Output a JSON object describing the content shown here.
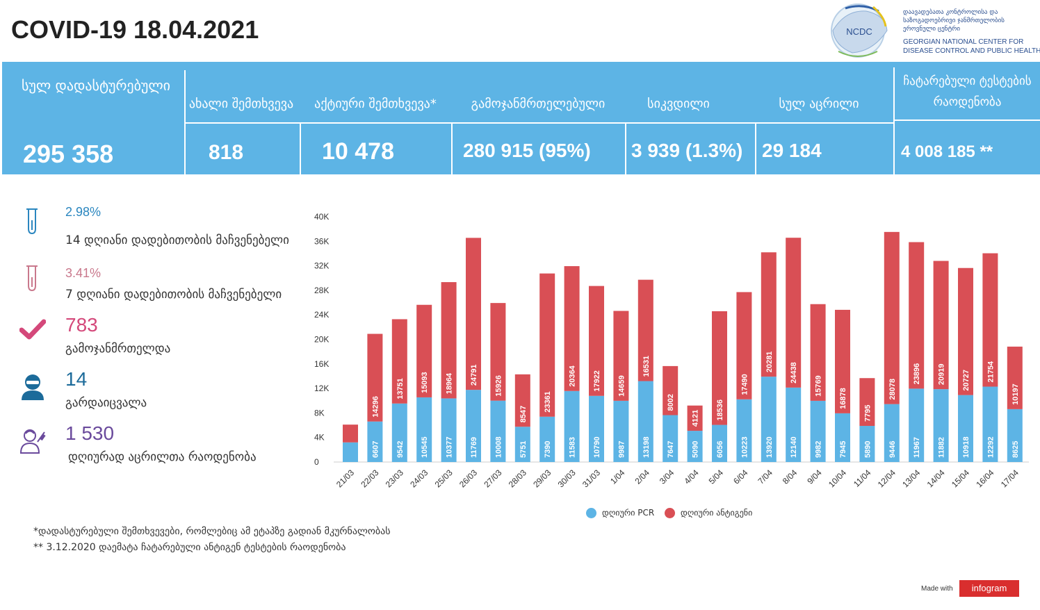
{
  "title": "COVID-19 18.04.2021",
  "logo": {
    "acronym": "NCDC",
    "name_ka": "დაავადებათა კონტროლისა და საზოგადოებრივი ჯანმრთელობის ეროვნული ცენტრი",
    "name_en": "GEORGIAN NATIONAL CENTER FOR DISEASE CONTROL AND PUBLIC HEALTH"
  },
  "banner": {
    "total_label": "სულ დადასტურებული",
    "total_value": "295 358",
    "new_label": "ახალი შემთხვევა",
    "new_value": "818",
    "active_label": "აქტიური შემთხვევა*",
    "active_value": "10 478",
    "recovered_label": "გამოჯანმრთელებული",
    "recovered_value": "280 915 (95%)",
    "deaths_label": "სიკვდილი",
    "deaths_value": "3 939 (1.3%)",
    "vaccinated_label": "სულ აცრილი",
    "vaccinated_value": "29 184",
    "tests_label": "ჩატარებული ტესტების რაოდენობა",
    "tests_value": "4 008 185 **"
  },
  "stats": {
    "pos14_value": "2.98%",
    "pos14_label": "14 დღიანი დადებითობის მაჩვენებელი",
    "pos7_value": "3.41%",
    "pos7_label": "7 დღიანი დადებითობის მაჩვენებელი",
    "recovered_value": "783",
    "recovered_label": "გამოჯანმრთელდა",
    "died_value": "14",
    "died_label": "გარდაიცვალა",
    "vacc_value": "1 530",
    "vacc_label": "დღიურად აცრილთა რაოდენობა"
  },
  "colors": {
    "banner": "#5db4e5",
    "pcr": "#5db4e5",
    "antigen": "#d94f55",
    "pos14": "#2a86bf",
    "pos7": "#c9788c",
    "recovered": "#d4487a",
    "died": "#1c6b9a",
    "vacc": "#6a4a9c"
  },
  "chart_data": {
    "type": "bar",
    "stacked": true,
    "categories": [
      "21/03",
      "22/03",
      "23/03",
      "24/03",
      "25/03",
      "26/03",
      "27/03",
      "28/03",
      "29/03",
      "30/03",
      "31/03",
      "1/04",
      "2/04",
      "3/04",
      "4/04",
      "5/04",
      "6/04",
      "7/04",
      "8/04",
      "9/04",
      "10/04",
      "11/04",
      "12/04",
      "13/04",
      "14/04",
      "15/04",
      "16/04",
      "17/04"
    ],
    "series": [
      {
        "name": "დღიური PCR",
        "values": [
          3200,
          6607,
          9542,
          10545,
          10377,
          11769,
          10008,
          5751,
          7390,
          11583,
          10790,
          9987,
          13198,
          7647,
          5090,
          6056,
          10223,
          13920,
          12140,
          9982,
          7945,
          5890,
          9446,
          11967,
          11882,
          10918,
          12292,
          8625
        ]
      },
      {
        "name": "დღიური ანტიგენი",
        "values": [
          2900,
          14296,
          13751,
          15093,
          18964,
          24791,
          15926,
          8547,
          23361,
          20364,
          17922,
          14659,
          16531,
          8002,
          4121,
          18536,
          17490,
          20281,
          24438,
          15769,
          16878,
          7795,
          28078,
          23896,
          20919,
          20727,
          21754,
          10197
        ]
      }
    ],
    "bar_labels": [
      [
        null,
        "6607",
        "9542",
        "10545",
        "10377",
        "11769",
        "10008",
        "5751",
        "7390",
        "11583",
        "10790",
        "9987",
        "13198",
        "7647",
        "5090",
        "6056",
        "10223",
        "13920",
        "12140",
        "9982",
        "7945",
        "5890",
        "9446",
        "11967",
        "11882",
        "10918",
        "12292",
        "8625"
      ],
      [
        null,
        "14296",
        "13751",
        "15093",
        "18964",
        "24791",
        "15926",
        "8547",
        "23361",
        "20364",
        "17922",
        "14659",
        "16531",
        "8002",
        "4121",
        "18536",
        "17490",
        "20281",
        "24438",
        "15769",
        "16878",
        "7795",
        "28078",
        "23896",
        "20919",
        "20727",
        "21754",
        "10197"
      ]
    ],
    "y_ticks": [
      "0",
      "4K",
      "8K",
      "12K",
      "16K",
      "20K",
      "24K",
      "28K",
      "32K",
      "36K",
      "40K"
    ],
    "ylim": [
      0,
      40000
    ],
    "legend_position": "bottom"
  },
  "notes": {
    "active": "*დადასტურებული შემთხვევები, რომლებიც ამ ეტაპზე გადიან მკურნალობას",
    "tests": "** 3.12.2020 დაემატა ჩატარებული ანტიგენ ტესტების რაოდენობა"
  },
  "footer": {
    "made_with": "Made with",
    "brand": "infogram"
  }
}
